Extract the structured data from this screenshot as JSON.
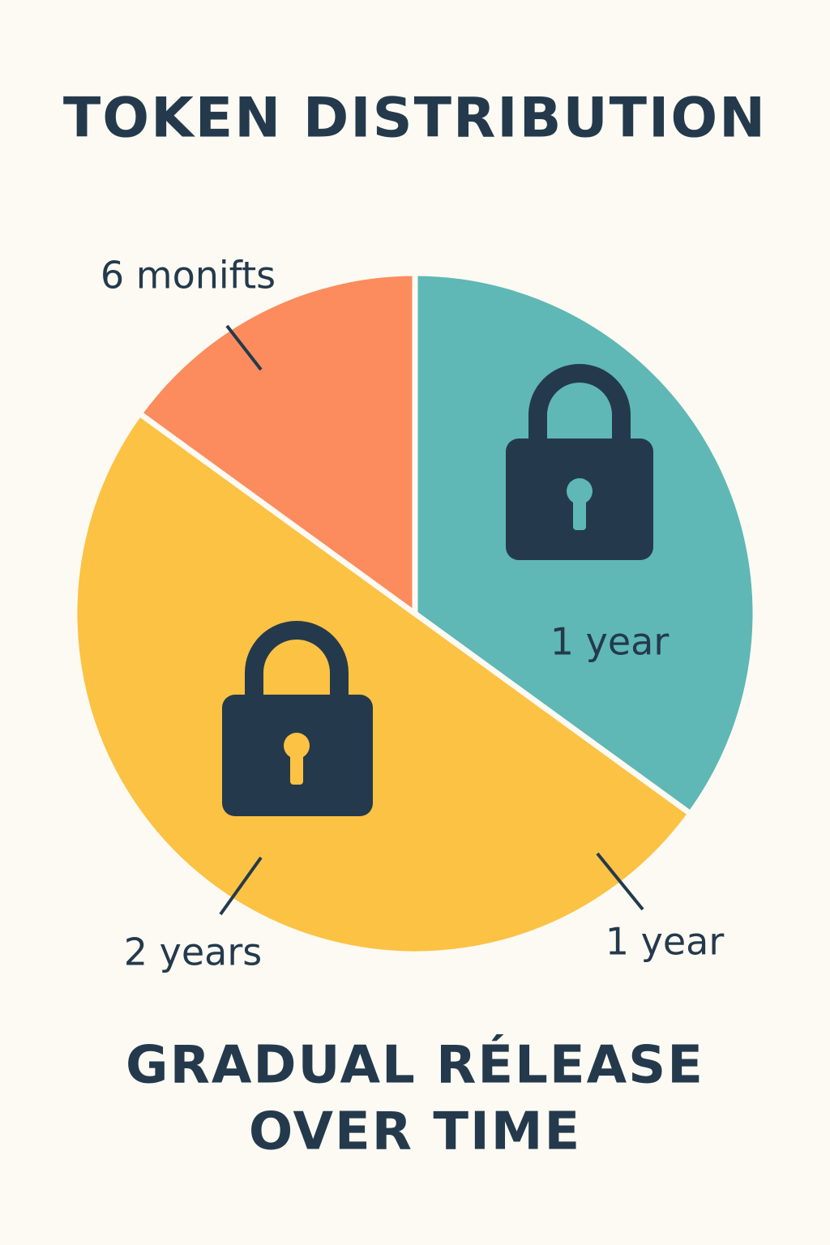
{
  "chart_data": {
    "type": "pie",
    "title": "TOKEN DISTRIBUTION",
    "categories": [
      "1 year",
      "2 years",
      "6 monifts"
    ],
    "values": [
      35,
      50,
      15
    ],
    "colors": [
      "#5fb8b5",
      "#fcc244",
      "#fc8c5e"
    ],
    "annotations": [
      "1 year"
    ],
    "footer": [
      "GRADUAL RÉLEASE",
      "OVER TIME"
    ]
  }
}
